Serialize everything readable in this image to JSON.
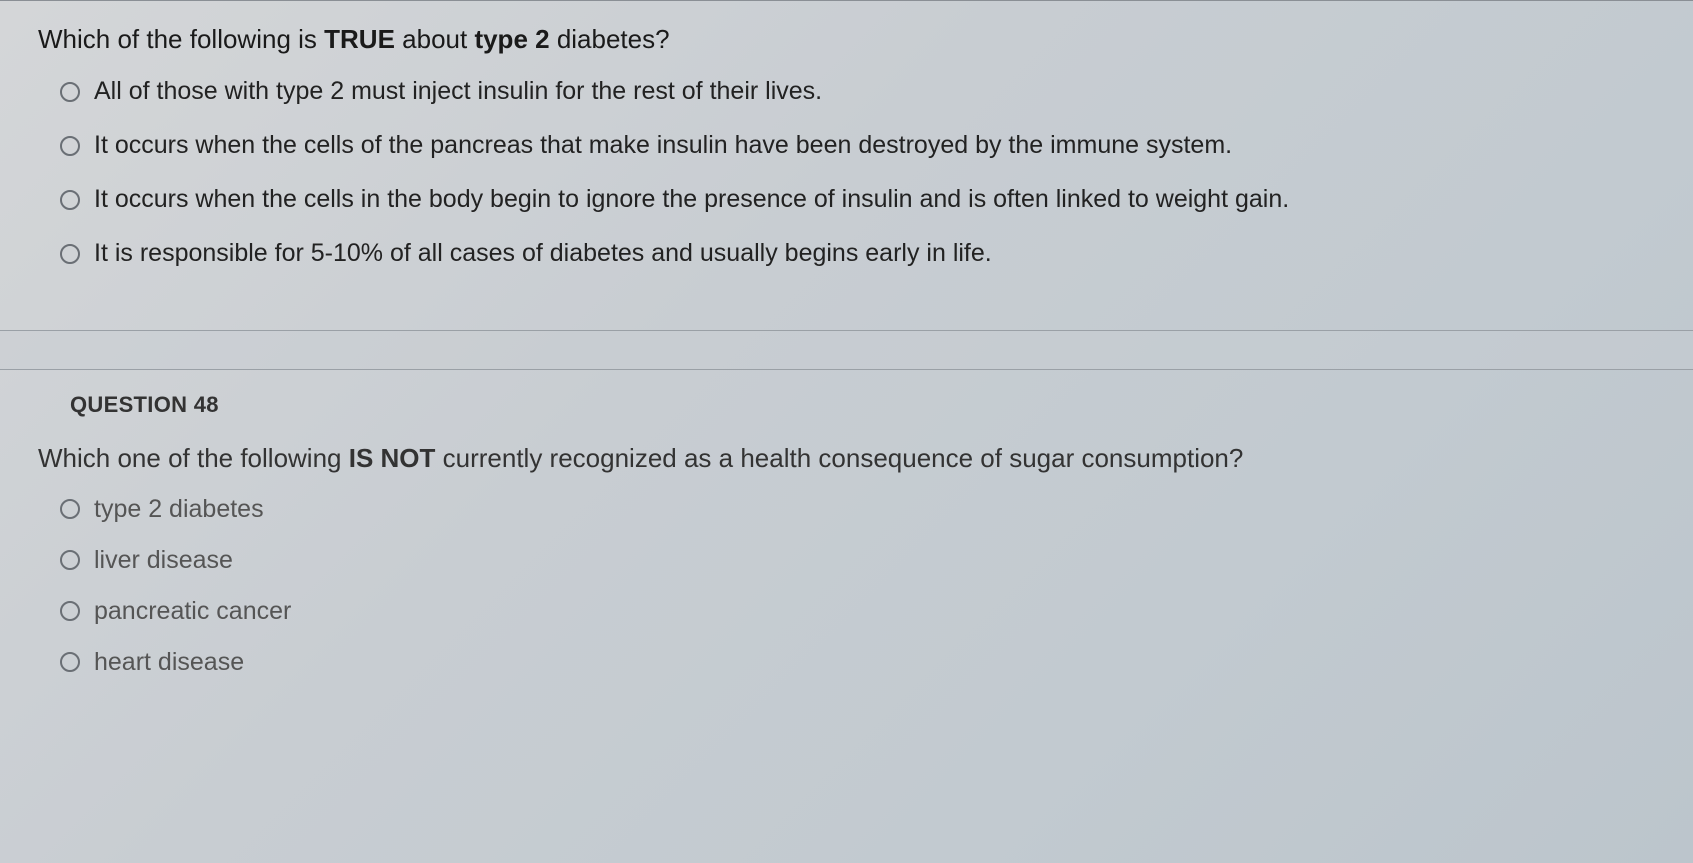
{
  "colors": {
    "background_start": "#d4d6d8",
    "background_end": "#bcc5cc",
    "text_primary": "#1a1a1a",
    "text_secondary": "#555555",
    "border": "#8a8f95",
    "radio_border": "#6a6f75"
  },
  "question1": {
    "prompt_prefix": "Which of the following is ",
    "prompt_bold1": "TRUE",
    "prompt_mid": " about ",
    "prompt_bold2": "type 2",
    "prompt_suffix": " diabetes?",
    "options": [
      "All of those with type 2 must inject insulin for the rest of their lives.",
      "It occurs when the cells of the pancreas that make insulin have been destroyed by the immune system.",
      "It occurs when the cells in the body begin to ignore the presence of insulin and is often linked to weight gain.",
      "It is responsible for 5-10% of all cases of diabetes and usually begins early in life."
    ]
  },
  "question2": {
    "header": "QUESTION 48",
    "prompt_prefix": "Which one of the following ",
    "prompt_bold": "IS NOT",
    "prompt_suffix": " currently recognized as a health consequence of sugar consumption?",
    "options": [
      "type 2 diabetes",
      "liver disease",
      "pancreatic cancer",
      "heart disease"
    ]
  }
}
